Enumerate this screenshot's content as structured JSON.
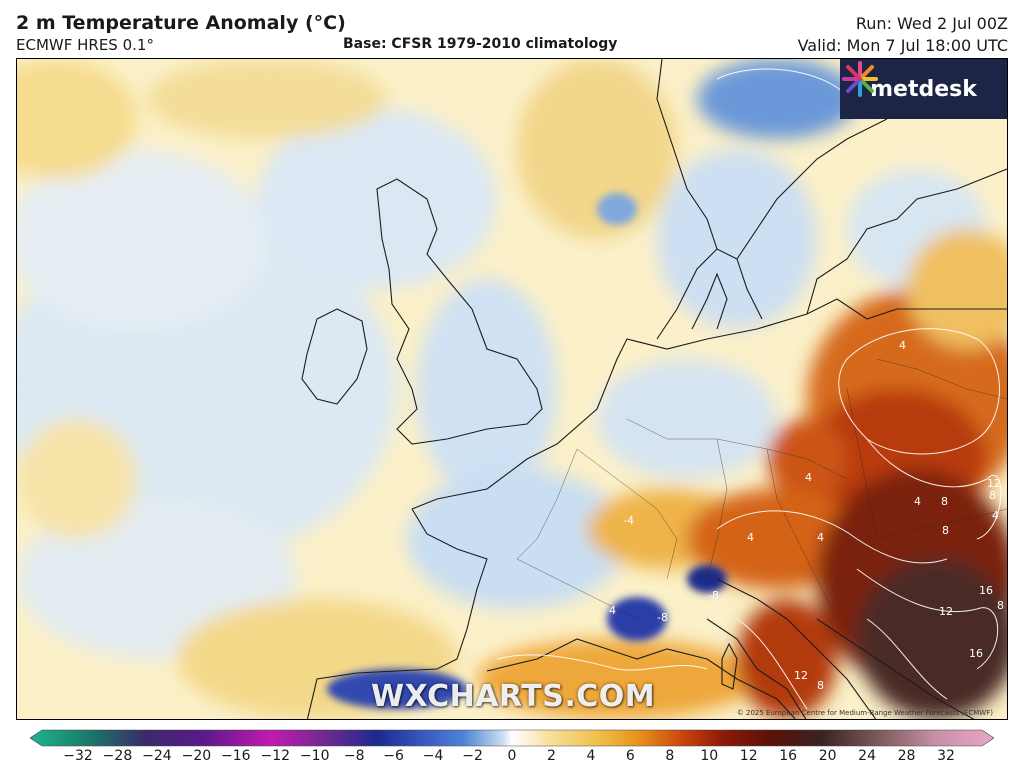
{
  "header": {
    "title": "2 m Temperature Anomaly (°C)",
    "subtitle": "ECMWF HRES 0.1°",
    "base": "Base: CFSR 1979-2010 climatology",
    "run": "Run: Wed 2 Jul 00Z",
    "valid": "Valid: Mon 7 Jul 18:00 UTC"
  },
  "logo": {
    "text": "metdesk",
    "icon": "metdesk-starburst-icon"
  },
  "watermark": "WXCHARTS.COM",
  "copyright": "© 2025 European Centre for Medium-Range Weather Forecasts (ECMWF)",
  "map": {
    "region": "Europe",
    "contour_labels": [
      "4",
      "4",
      "4",
      "4",
      "4",
      "4",
      "4",
      "8",
      "8",
      "8",
      "8",
      "8",
      "12",
      "12",
      "12",
      "16",
      "16",
      "-8",
      "-8",
      "-4"
    ]
  },
  "colorbar": {
    "ticks": [
      "−32",
      "−28",
      "−24",
      "−20",
      "−16",
      "−12",
      "−10",
      "−8",
      "−6",
      "−4",
      "−2",
      "0",
      "2",
      "4",
      "6",
      "8",
      "10",
      "12",
      "16",
      "20",
      "24",
      "28",
      "32"
    ],
    "colors": {
      "cold_extreme": "#1fb592",
      "deep_purple": "#5a1a8c",
      "magenta": "#c21bb0",
      "navy": "#1b2a8f",
      "blue": "#4f84d4",
      "light_blue": "#c8ddf0",
      "zero": "#ffffff",
      "light_yellow": "#f7df9a",
      "orange": "#e8931e",
      "red_orange": "#c8410c",
      "dark_red": "#6b1508",
      "brown": "#3a2220",
      "warm_extreme": "#e9a6c4"
    }
  }
}
